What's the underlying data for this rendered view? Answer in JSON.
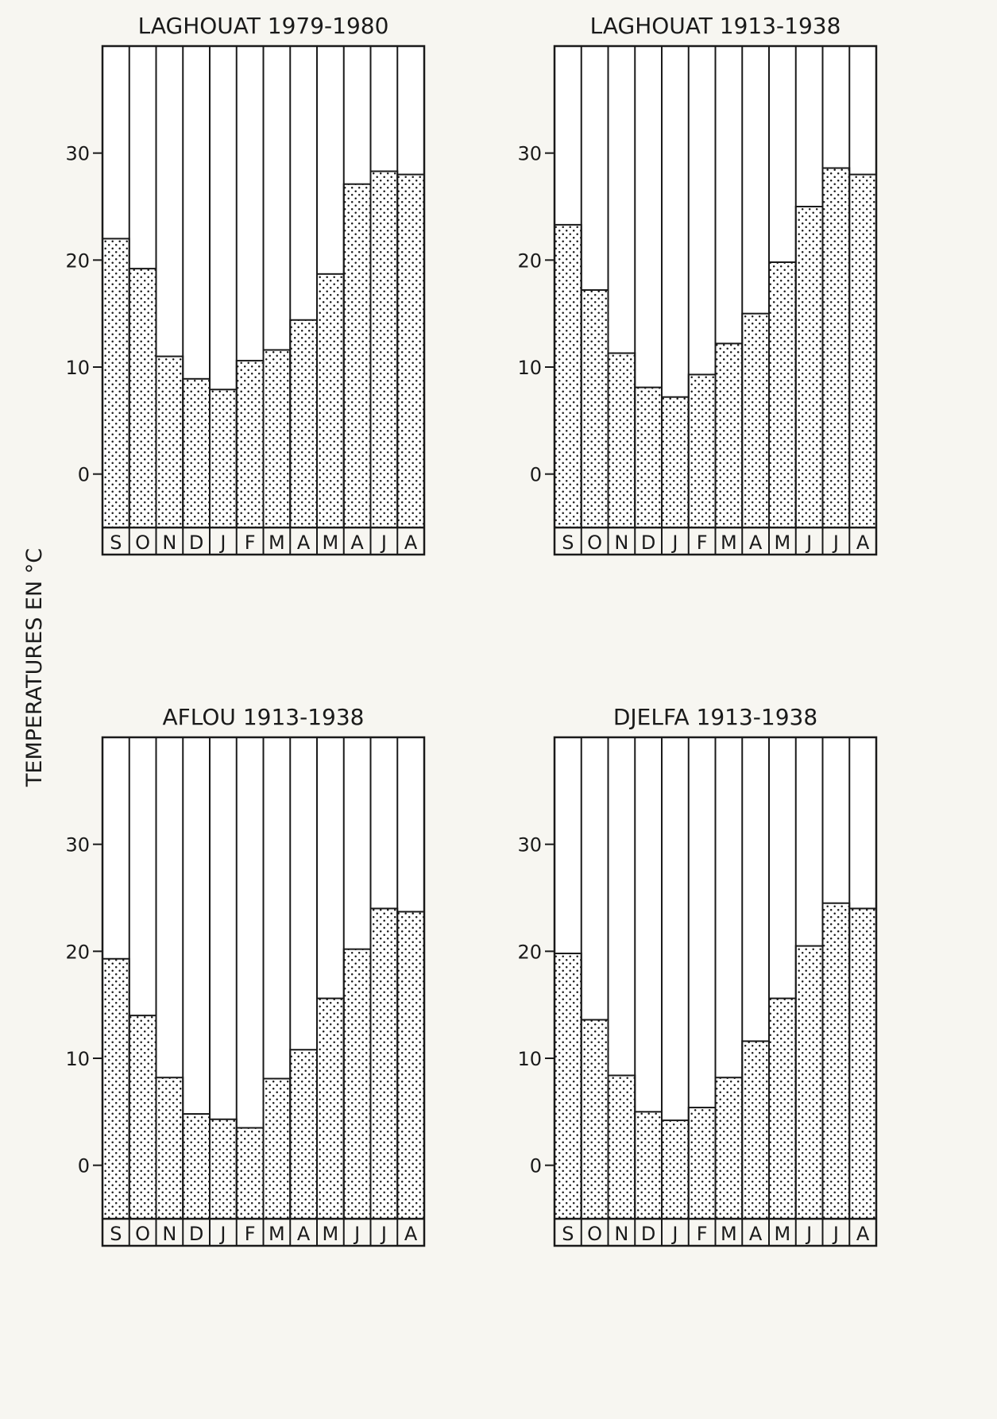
{
  "figure": {
    "ylabel": "TEMPERATURES EN °C"
  },
  "colors": {
    "paper": "#f7f6f1",
    "ink": "#1a1a1a"
  },
  "chart_data": [
    {
      "type": "bar",
      "title": "LAGHOUAT 1979-1980",
      "categories": [
        "S",
        "O",
        "N",
        "D",
        "J",
        "F",
        "M",
        "A",
        "M",
        "A",
        "J",
        "A"
      ],
      "values": [
        22.0,
        19.2,
        11.0,
        8.9,
        7.9,
        10.6,
        11.6,
        14.4,
        18.7,
        27.1,
        28.3,
        28.0
      ],
      "yticks": [
        0,
        10,
        20,
        30
      ],
      "ylim": [
        -5,
        40
      ],
      "grid": false
    },
    {
      "type": "bar",
      "title": "LAGHOUAT 1913-1938",
      "categories": [
        "S",
        "O",
        "N",
        "D",
        "J",
        "F",
        "M",
        "A",
        "M",
        "J",
        "J",
        "A"
      ],
      "values": [
        23.3,
        17.2,
        11.3,
        8.1,
        7.2,
        9.3,
        12.2,
        15.0,
        19.8,
        25.0,
        28.6,
        28.0
      ],
      "yticks": [
        0,
        10,
        20,
        30
      ],
      "ylim": [
        -5,
        40
      ],
      "grid": false
    },
    {
      "type": "bar",
      "title": "AFLOU 1913-1938",
      "categories": [
        "S",
        "O",
        "N",
        "D",
        "J",
        "F",
        "M",
        "A",
        "M",
        "J",
        "J",
        "A"
      ],
      "values": [
        19.3,
        14.0,
        8.2,
        4.8,
        4.3,
        3.5,
        8.1,
        10.8,
        15.6,
        20.2,
        24.0,
        23.7
      ],
      "yticks": [
        0,
        10,
        20,
        30
      ],
      "ylim": [
        -5,
        40
      ],
      "grid": false
    },
    {
      "type": "bar",
      "title": "DJELFA 1913-1938",
      "categories": [
        "S",
        "O",
        "N",
        "D",
        "J",
        "F",
        "M",
        "A",
        "M",
        "J",
        "J",
        "A"
      ],
      "values": [
        19.8,
        13.6,
        8.4,
        5.0,
        4.2,
        5.4,
        8.2,
        11.6,
        15.6,
        20.5,
        24.5,
        24.0
      ],
      "yticks": [
        0,
        10,
        20,
        30
      ],
      "ylim": [
        -5,
        40
      ],
      "grid": false
    }
  ]
}
